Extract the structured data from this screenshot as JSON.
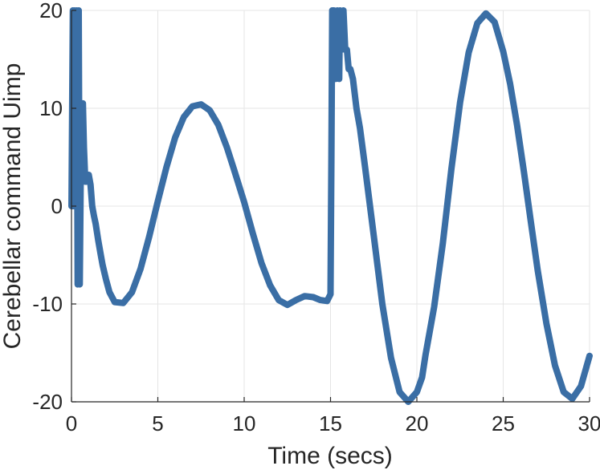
{
  "chart_data": {
    "type": "line",
    "title": "",
    "xlabel": "Time (secs)",
    "ylabel": "Cerebellar command Uimp",
    "xlim": [
      0,
      30
    ],
    "ylim": [
      -20,
      20
    ],
    "xticks": [
      0,
      5,
      10,
      15,
      20,
      25,
      30
    ],
    "xtick_labels": [
      "0",
      "5",
      "10",
      "15",
      "20",
      "25",
      "30"
    ],
    "yticks": [
      -20,
      -10,
      0,
      10,
      20
    ],
    "ytick_labels": [
      "-20",
      "-10",
      "0",
      "10",
      "20"
    ],
    "grid": true,
    "legend": "none",
    "colors": {
      "line": "#3a6ea5",
      "grid": "#e5e5e5",
      "axis": "#262626"
    },
    "series": [
      {
        "x": [
          0,
          0.08,
          0.12,
          0.18,
          0.24,
          0.3,
          0.36,
          0.42,
          0.48,
          0.55,
          0.6,
          0.66,
          0.72,
          0.8,
          0.86,
          0.92,
          1.0,
          1.1,
          1.2,
          1.3,
          1.4,
          1.55,
          1.7,
          1.8,
          2.0,
          2.2,
          2.5,
          3.0,
          3.5,
          4.0,
          4.5,
          5.0,
          5.5,
          6.0,
          6.5,
          7.0,
          7.5,
          8.0,
          8.5,
          9.0,
          9.4,
          10.0,
          10.5,
          11.0,
          11.5,
          12.0,
          12.5,
          13.0,
          13.5,
          14.0,
          14.4,
          14.8,
          15.0,
          15.05,
          15.1,
          15.2,
          15.3,
          15.4,
          15.5,
          15.55,
          15.65,
          15.75,
          15.85,
          15.95,
          16.05,
          16.15,
          16.3,
          16.5,
          16.7,
          17.0,
          17.5,
          18.0,
          18.5,
          19.0,
          19.5,
          20.0,
          20.3,
          20.5,
          21.0,
          21.5,
          22.0,
          22.5,
          23.0,
          23.5,
          24.0,
          24.5,
          25.0,
          25.4,
          25.8,
          26.2,
          26.6,
          27.0,
          27.5,
          28.0,
          28.5,
          29.0,
          29.5,
          30.0
        ],
        "y": [
          0,
          20,
          0,
          20,
          4,
          20,
          -8,
          20,
          -8,
          6,
          10.5,
          10.5,
          6,
          2.5,
          2.5,
          3.2,
          3.2,
          2.2,
          0,
          -1,
          -1.8,
          -3.5,
          -5,
          -6,
          -7.5,
          -8.8,
          -9.8,
          -9.9,
          -8.8,
          -6.4,
          -3.1,
          0.5,
          4.0,
          7.0,
          9.1,
          10.2,
          10.4,
          9.8,
          8.3,
          6.0,
          3.8,
          0.4,
          -2.8,
          -5.8,
          -8.1,
          -9.6,
          -10.1,
          -9.6,
          -9.2,
          -9.3,
          -9.6,
          -9.7,
          -9.0,
          5,
          20,
          20,
          13,
          20,
          13,
          20,
          16,
          20,
          16,
          16,
          14,
          14,
          13,
          10,
          8,
          4,
          -3,
          -10,
          -15.5,
          -19.0,
          -20.0,
          -19.0,
          -17.5,
          -15.2,
          -10.3,
          -3.8,
          3.8,
          10.6,
          15.7,
          18.7,
          19.7,
          18.8,
          15.8,
          12.5,
          8.3,
          3.5,
          -1.6,
          -6.6,
          -12.0,
          -16.3,
          -19.0,
          -19.7,
          -18.4,
          -15.3
        ]
      }
    ]
  }
}
